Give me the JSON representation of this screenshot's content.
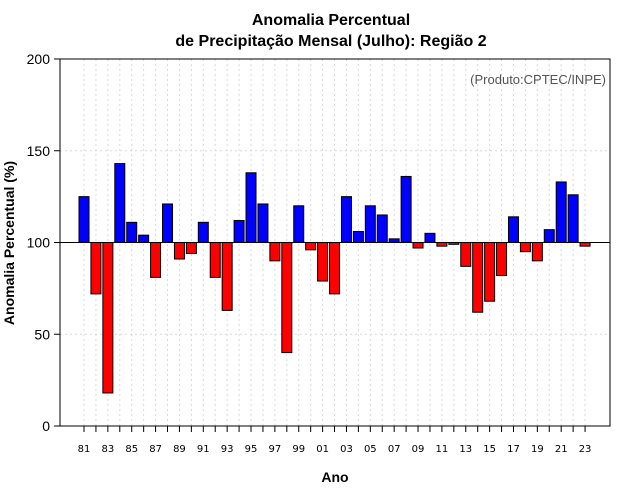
{
  "chart_data": {
    "type": "bar",
    "title_line1": "Anomalia Percentual",
    "title_line2": "de Precipitação Mensal (Julho): Região 2",
    "xlabel": "Ano",
    "ylabel": "Anomalia Percentual (%)",
    "credit": "(Produto:CPTEC/INPE)",
    "ylim": [
      0,
      200
    ],
    "yticks": [
      0,
      50,
      100,
      150,
      200
    ],
    "baseline": 100,
    "colors": {
      "above": "#0000ff",
      "below": "#ff0000",
      "outline": "#000000",
      "grid": "#d9d9d9"
    },
    "categories": [
      "81",
      "82",
      "83",
      "84",
      "85",
      "86",
      "87",
      "88",
      "89",
      "90",
      "91",
      "92",
      "93",
      "94",
      "95",
      "96",
      "97",
      "98",
      "99",
      "00",
      "01",
      "02",
      "03",
      "04",
      "05",
      "06",
      "07",
      "08",
      "09",
      "10",
      "11",
      "12",
      "13",
      "14",
      "15",
      "16",
      "17",
      "18",
      "19",
      "20",
      "21",
      "22",
      "23"
    ],
    "xtick_labels": [
      "81",
      "83",
      "85",
      "87",
      "89",
      "91",
      "93",
      "95",
      "97",
      "99",
      "01",
      "03",
      "05",
      "07",
      "09",
      "11",
      "13",
      "15",
      "17",
      "19",
      "21",
      "23"
    ],
    "values": [
      125,
      72,
      18,
      143,
      111,
      104,
      81,
      121,
      91,
      94,
      111,
      81,
      63,
      112,
      138,
      121,
      90,
      40,
      120,
      96,
      79,
      72,
      125,
      106,
      120,
      115,
      102,
      136,
      97,
      105,
      98,
      99,
      87,
      62,
      68,
      82,
      114,
      95,
      90,
      107,
      133,
      126,
      98
    ]
  }
}
